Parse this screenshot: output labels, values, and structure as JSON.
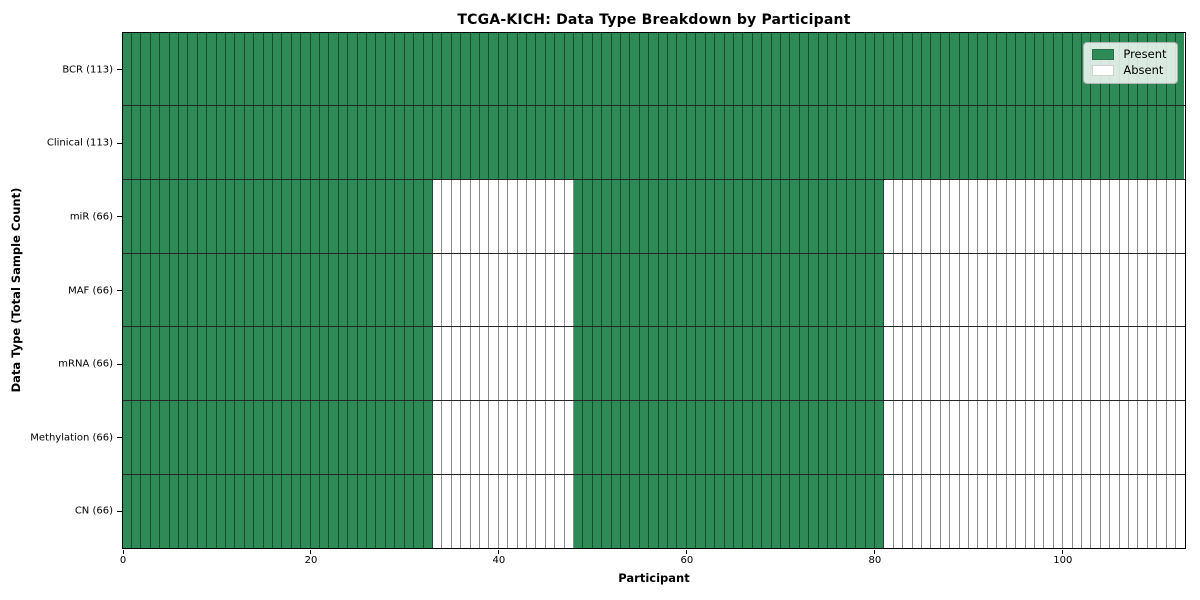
{
  "chart_data": {
    "type": "heatmap",
    "title": "TCGA-KICH: Data Type Breakdown by Participant",
    "xlabel": "Participant",
    "ylabel": "Data Type (Total Sample Count)",
    "x_ticks": [
      0,
      20,
      40,
      60,
      80,
      100
    ],
    "x_range": [
      0,
      113
    ],
    "n_participants": 113,
    "grid": "per-cell black edges, black row separators",
    "colors": {
      "present": "#2e8b57",
      "absent": "#ffffff",
      "cell_edge": "rgba(0,0,0,0.45)",
      "spine": "#000000"
    },
    "legend": {
      "position": "upper right",
      "entries": [
        {
          "label": "Present",
          "color": "#2e8b57"
        },
        {
          "label": "Absent",
          "color": "#ffffff"
        }
      ]
    },
    "present_ranges_convention": "zero-based half-open [start, end)",
    "rows": [
      {
        "data_type": "BCR",
        "label": "BCR (113)",
        "total_samples": 113,
        "present_ranges": [
          [
            0,
            113
          ]
        ]
      },
      {
        "data_type": "Clinical",
        "label": "Clinical (113)",
        "total_samples": 113,
        "present_ranges": [
          [
            0,
            113
          ]
        ]
      },
      {
        "data_type": "miR",
        "label": "miR (66)",
        "total_samples": 66,
        "present_ranges": [
          [
            0,
            33
          ],
          [
            48,
            81
          ]
        ]
      },
      {
        "data_type": "MAF",
        "label": "MAF (66)",
        "total_samples": 66,
        "present_ranges": [
          [
            0,
            33
          ],
          [
            48,
            81
          ]
        ]
      },
      {
        "data_type": "mRNA",
        "label": "mRNA (66)",
        "total_samples": 66,
        "present_ranges": [
          [
            0,
            33
          ],
          [
            48,
            81
          ]
        ]
      },
      {
        "data_type": "Methylation",
        "label": "Methylation (66)",
        "total_samples": 66,
        "present_ranges": [
          [
            0,
            33
          ],
          [
            48,
            81
          ]
        ]
      },
      {
        "data_type": "CN",
        "label": "CN (66)",
        "total_samples": 66,
        "present_ranges": [
          [
            0,
            33
          ],
          [
            48,
            81
          ]
        ]
      }
    ]
  }
}
